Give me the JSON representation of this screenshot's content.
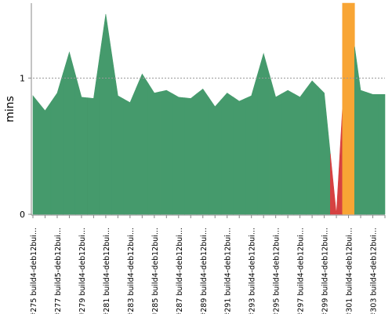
{
  "chart_data": {
    "type": "area",
    "ylabel": "mins",
    "ylim": [
      0,
      1.55
    ],
    "yticks": [
      0,
      1
    ],
    "grid": "dashed line at y = 1",
    "x_labels": [
      "#275 build4-deb12bui...",
      "#277 build5-deb12bui...",
      "#279 build4-deb12bui...",
      "#281 build4-deb12bui...",
      "#283 build4-deb12bui...",
      "#285 build4-deb12bui...",
      "#287 build4-deb12bui...",
      "#289 build4-deb12bui...",
      "#291 build4-deb12bui...",
      "#293 build4-deb12bui...",
      "#295 build4-deb12bui...",
      "#297 build4-deb12bui...",
      "#299 build4-deb12bui...",
      "#301 build4-deb12bui...",
      "#303 build4-deb12bui..."
    ],
    "builds": [
      275,
      276,
      277,
      278,
      279,
      280,
      281,
      282,
      283,
      284,
      285,
      286,
      287,
      288,
      289,
      290,
      291,
      292,
      293,
      294,
      295,
      296,
      297,
      298,
      299,
      300,
      301,
      302,
      303,
      304
    ],
    "durations": [
      0.87,
      0.76,
      0.89,
      1.19,
      0.86,
      0.85,
      1.47,
      0.87,
      0.82,
      1.03,
      0.89,
      0.91,
      0.86,
      0.85,
      0.92,
      0.79,
      0.89,
      0.83,
      0.87,
      1.18,
      0.86,
      0.91,
      0.86,
      0.98,
      0.89,
      0.0,
      1.55,
      0.91,
      0.88,
      0.88
    ],
    "status": [
      "success",
      "success",
      "success",
      "success",
      "success",
      "success",
      "success",
      "success",
      "success",
      "success",
      "success",
      "success",
      "success",
      "success",
      "success",
      "success",
      "success",
      "success",
      "success",
      "success",
      "success",
      "success",
      "success",
      "success",
      "success",
      "failure",
      "unstable",
      "success",
      "success",
      "success"
    ],
    "colors": {
      "success": "#459a6c",
      "failure": "#d64141",
      "unstable": "#f8a535",
      "axis": "#888888",
      "grid": "#999999",
      "label": "#000000"
    }
  }
}
